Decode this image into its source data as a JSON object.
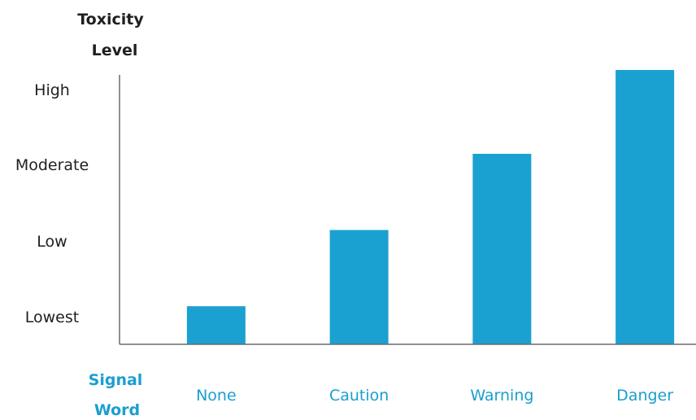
{
  "chart_data": {
    "type": "bar",
    "ylabel_lines": [
      "Toxicity",
      "Level"
    ],
    "xlabel_lines": [
      "Signal",
      "Word"
    ],
    "categories": [
      "None",
      "Caution",
      "Warning",
      "Danger"
    ],
    "y_tick_labels": [
      "Lowest",
      "Low",
      "Moderate",
      "High"
    ],
    "values": [
      0.5,
      1.5,
      2.5,
      3.6
    ],
    "ylim": [
      0,
      3.6
    ],
    "grid": false,
    "bar_color": "#1aa1d1",
    "accent_color": "#1a9fcf"
  }
}
